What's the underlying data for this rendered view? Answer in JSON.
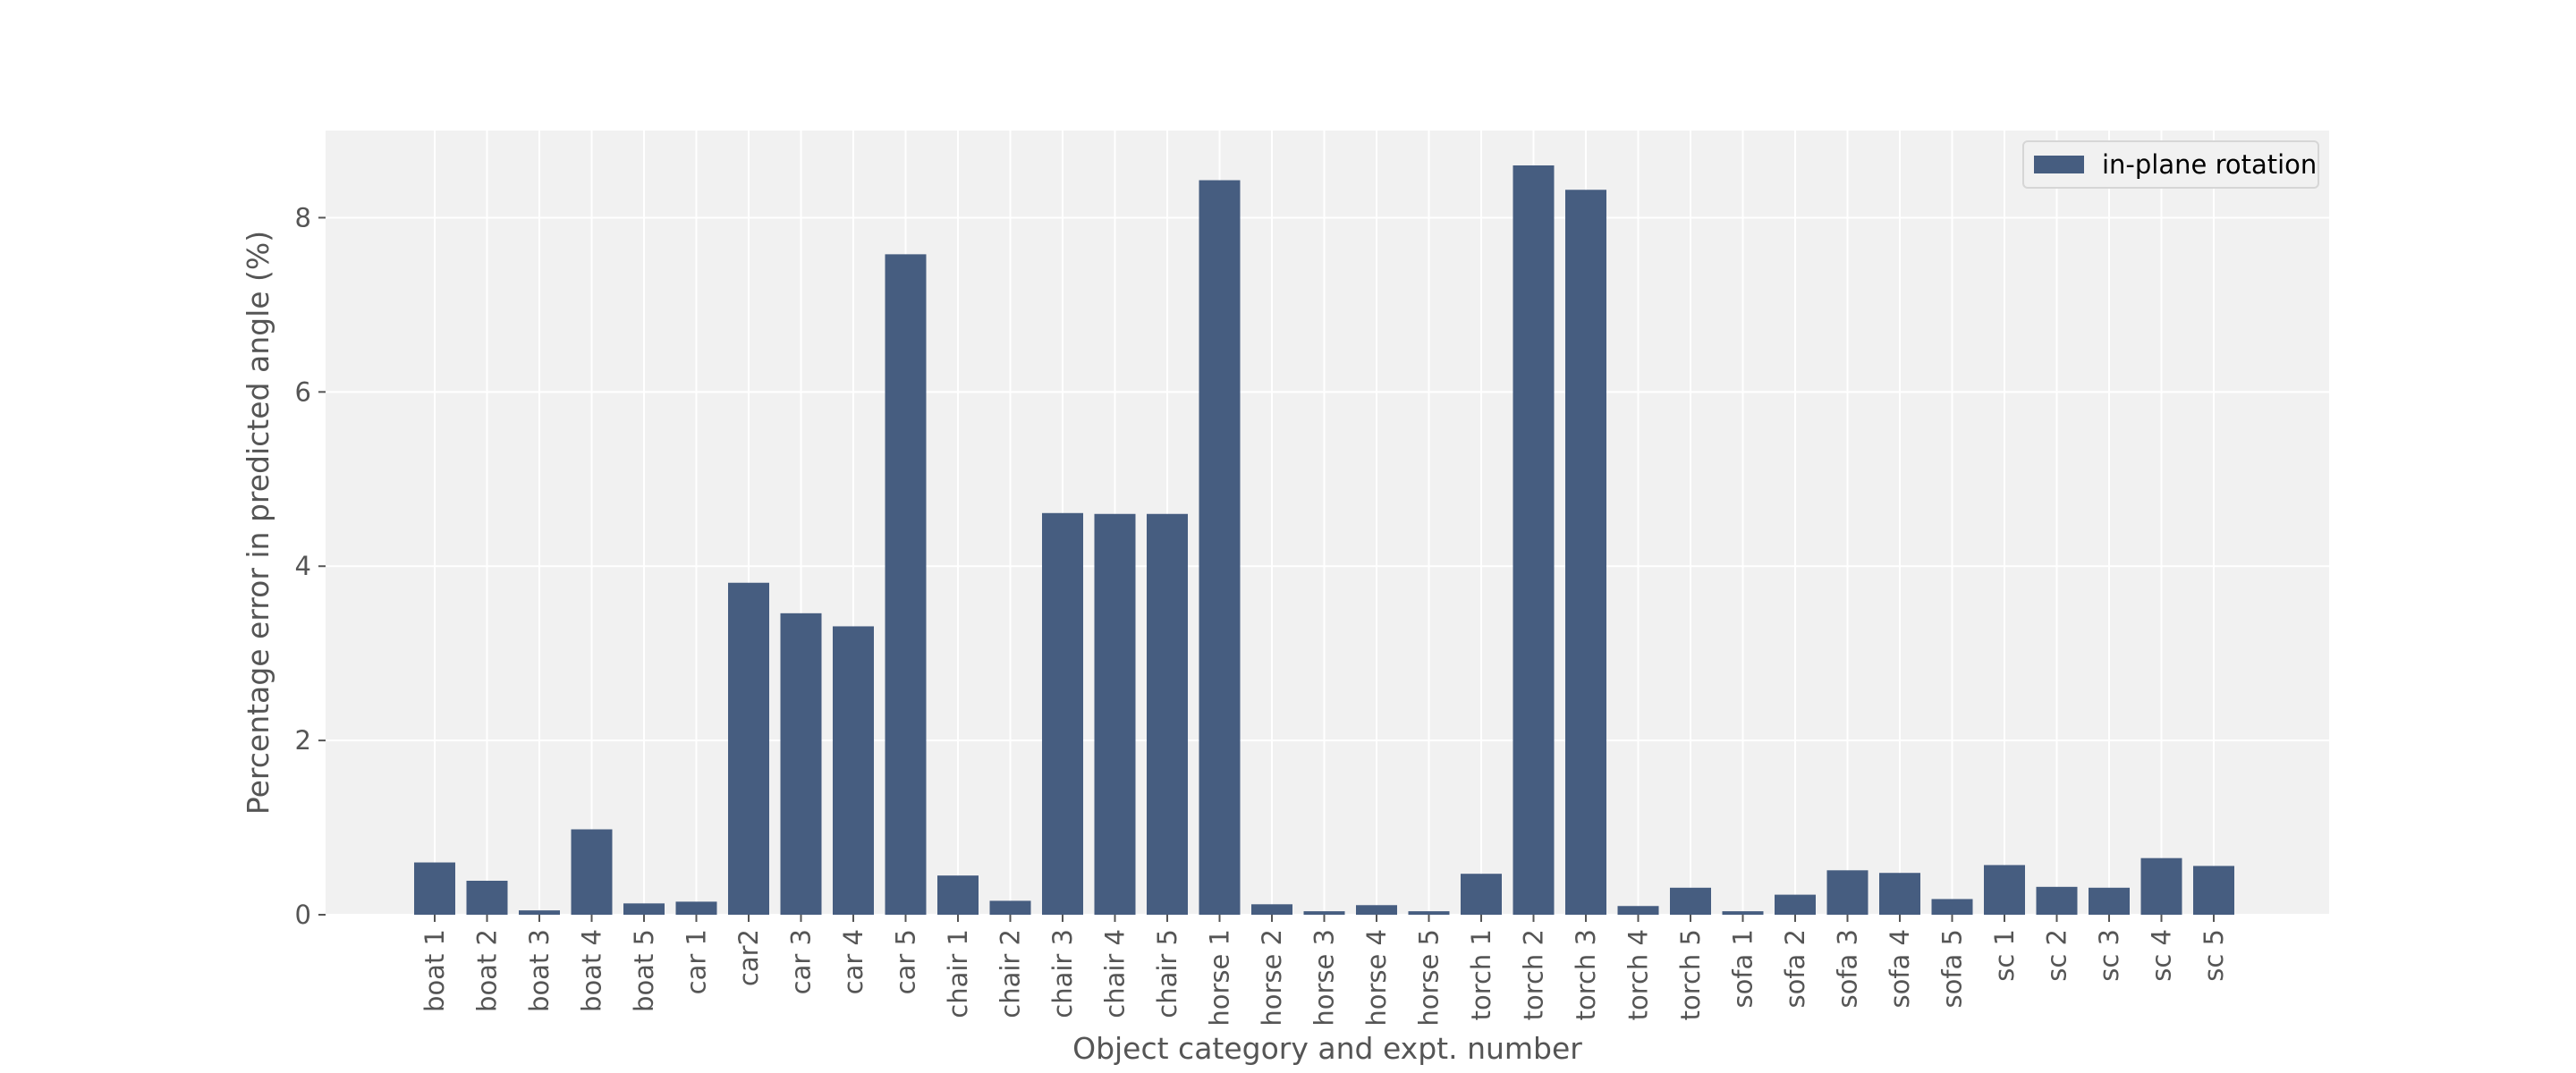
{
  "chart_data": {
    "type": "bar",
    "title": "",
    "xlabel": "Object category and expt. number",
    "ylabel": "Percentage error in predicted angle (%)",
    "ylim": [
      0,
      9
    ],
    "yticks": [
      0,
      2,
      4,
      6,
      8
    ],
    "grid": true,
    "legend_position": "top-right",
    "colors": {
      "bar": "#465d80",
      "plot_background": "#f1f1f1",
      "grid": "#ffffff",
      "text": "#555555"
    },
    "categories": [
      "boat 1",
      "boat 2",
      "boat 3",
      "boat 4",
      "boat 5",
      "car 1",
      "car2",
      "car 3",
      "car 4",
      "car 5",
      "chair 1",
      "chair 2",
      "chair 3",
      "chair 4",
      "chair 5",
      "horse 1",
      "horse 2",
      "horse 3",
      "horse 4",
      "horse 5",
      "torch 1",
      "torch 2",
      "torch 3",
      "torch 4",
      "torch 5",
      "sofa 1",
      "sofa 2",
      "sofa 3",
      "sofa 4",
      "sofa 5",
      "sc 1",
      "sc 2",
      "sc 3",
      "sc 4",
      "sc 5"
    ],
    "series": [
      {
        "name": "in-plane rotation",
        "values": [
          0.6,
          0.39,
          0.05,
          0.98,
          0.13,
          0.15,
          3.81,
          3.46,
          3.31,
          7.58,
          0.45,
          0.16,
          4.61,
          4.6,
          4.6,
          8.43,
          0.12,
          0.04,
          0.11,
          0.04,
          0.47,
          8.6,
          8.32,
          0.1,
          0.31,
          0.04,
          0.23,
          0.51,
          0.48,
          0.18,
          0.57,
          0.32,
          0.31,
          0.65,
          0.56
        ]
      }
    ]
  }
}
